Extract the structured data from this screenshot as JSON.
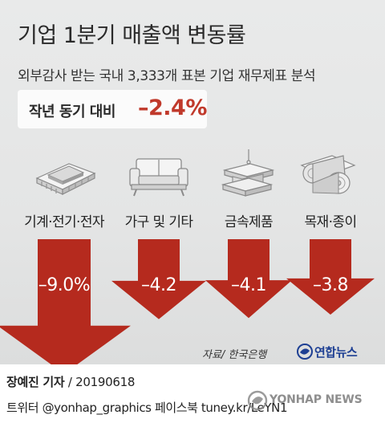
{
  "title": "기업 1분기 매출액 변동률",
  "subtitle": "외부감사 받는 국내 3,333개 표본 기업 재무제표 분석",
  "yoy": {
    "label": "작년 동기 대비",
    "value": "–2.4%"
  },
  "chart_data": {
    "type": "bar",
    "title": "기업 1분기 매출액 변동률",
    "categories": [
      "기계·전기·전자",
      "가구 및 기타",
      "금속제품",
      "목재·종이"
    ],
    "values": [
      -9.0,
      -4.2,
      -4.1,
      -3.8
    ],
    "value_labels": [
      "–9.0%",
      "–4.2",
      "–4.1",
      "–3.8"
    ],
    "unit": "%",
    "colors": {
      "arrow": "#b52a1e",
      "label": "#ffffff"
    }
  },
  "icons": [
    "machine-icon",
    "sofa-icon",
    "steel-beam-icon",
    "wood-paper-roll-icon"
  ],
  "source": "자료/ 한국은행",
  "logo": "연합뉴스",
  "byline": {
    "name": "장예진 기자",
    "date": " / 20190618"
  },
  "social": "트위터 @yonhap_graphics  페이스북 tuney.kr/LeYN1",
  "watermark": "YONHAP NEWS"
}
